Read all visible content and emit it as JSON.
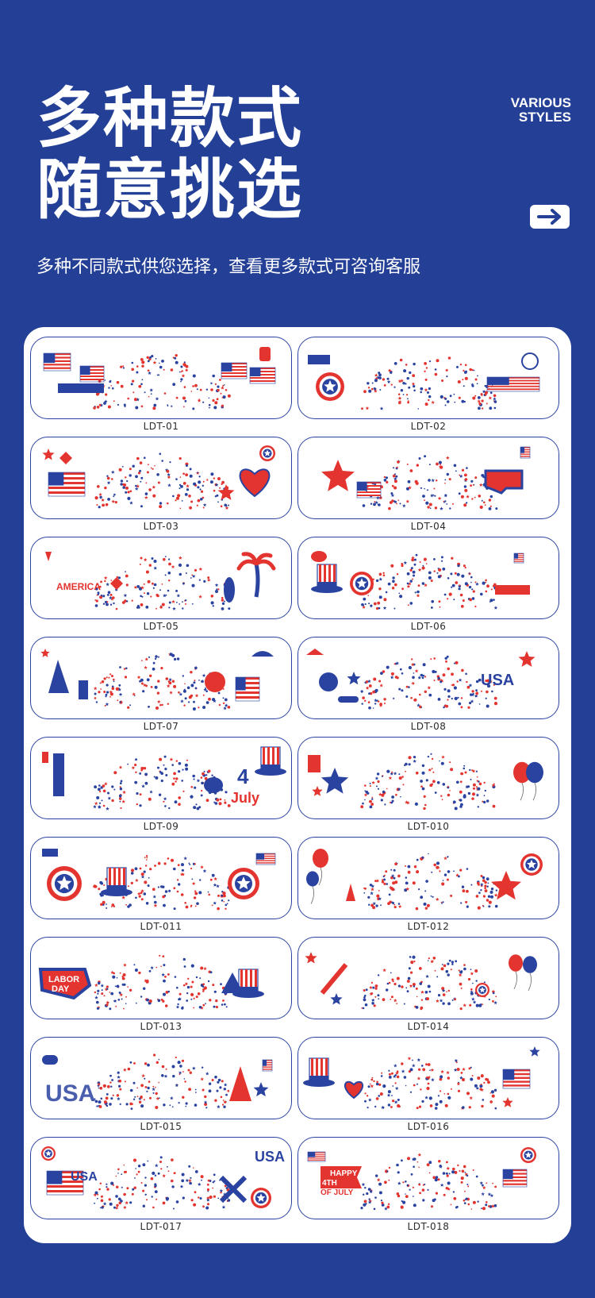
{
  "header": {
    "title_line1": "多种款式",
    "title_line2": "随意挑选",
    "various_line1": "VARIOUS",
    "various_line2": "STYLES",
    "subtitle": "多种不同款式供您选择，查看更多款式可咨询客服",
    "arrow_icon": "arrow-right-icon"
  },
  "colors": {
    "background": "#233f96",
    "panel": "#ffffff",
    "red": "#e3342f",
    "blue": "#2a43a0"
  },
  "styles": [
    {
      "label": "LDT-01"
    },
    {
      "label": "LDT-02"
    },
    {
      "label": "LDT-03"
    },
    {
      "label": "LDT-04"
    },
    {
      "label": "LDT-05"
    },
    {
      "label": "LDT-06"
    },
    {
      "label": "LDT-07"
    },
    {
      "label": "LDT-08"
    },
    {
      "label": "LDT-09"
    },
    {
      "label": "LDT-010"
    },
    {
      "label": "LDT-011"
    },
    {
      "label": "LDT-012"
    },
    {
      "label": "LDT-013"
    },
    {
      "label": "LDT-014"
    },
    {
      "label": "LDT-015"
    },
    {
      "label": "LDT-016"
    },
    {
      "label": "LDT-017"
    },
    {
      "label": "LDT-018"
    }
  ],
  "sticker_text": {
    "america": "AMERICA",
    "usa": "USA",
    "four": "4",
    "july": "July",
    "labor": "LABOR",
    "day": "DAY",
    "happy": "HAPPY",
    "fourth": "4TH",
    "of_july": "OF JULY"
  }
}
